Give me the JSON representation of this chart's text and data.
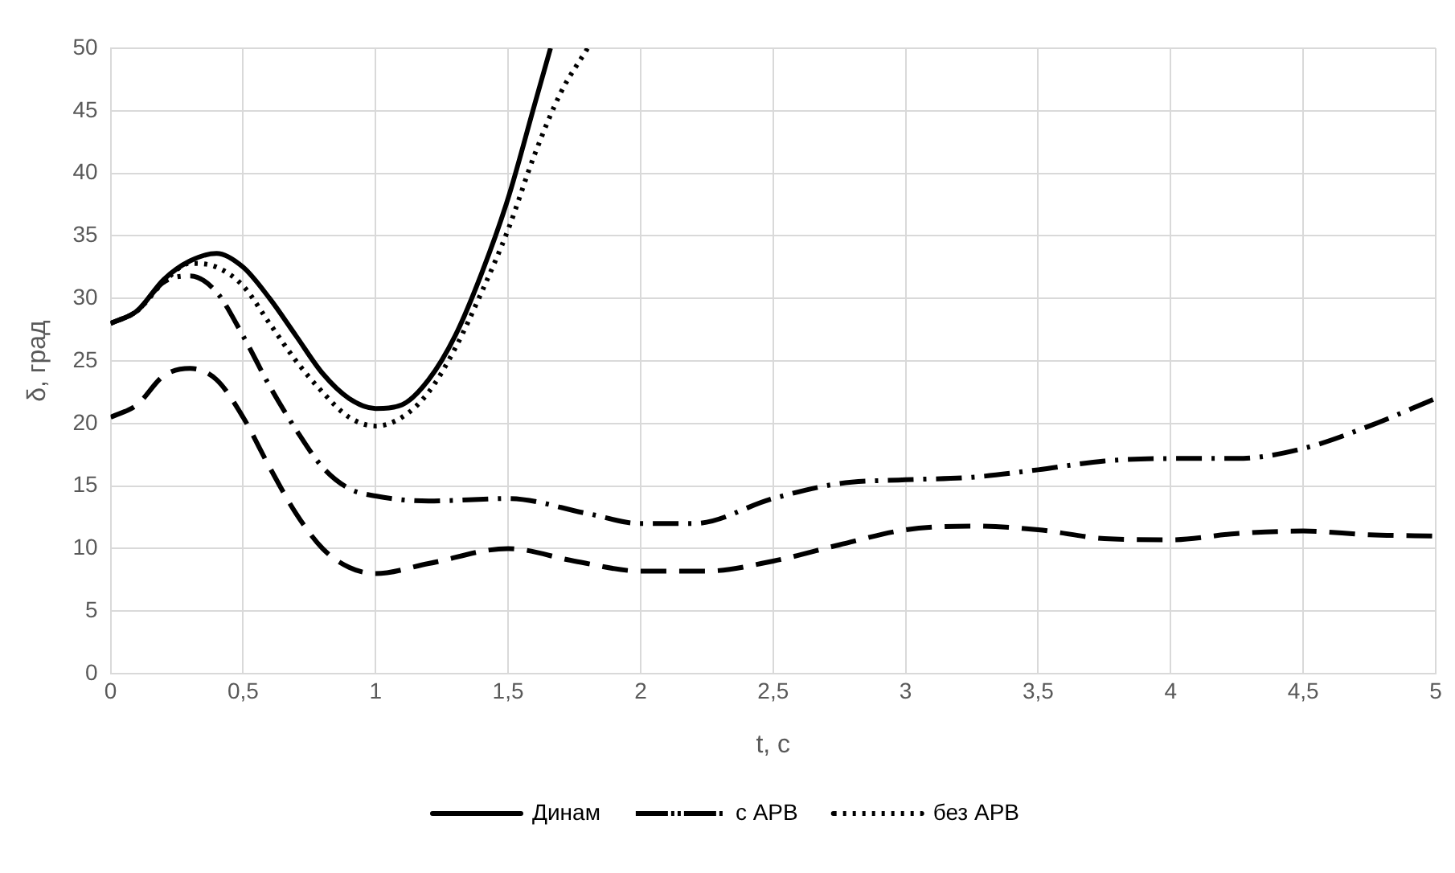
{
  "chart_data": {
    "type": "line",
    "xlabel": "t, с",
    "ylabel": "δ, град",
    "xlim": [
      0,
      5
    ],
    "ylim": [
      0,
      50
    ],
    "xticks": [
      0,
      {
        "value": 0.5,
        "label": "0,5"
      },
      1,
      {
        "value": 1.5,
        "label": "1,5"
      },
      2,
      {
        "value": 2.5,
        "label": "2,5"
      },
      3,
      {
        "value": 3.5,
        "label": "3,5"
      },
      4,
      {
        "value": 4.5,
        "label": "4,5"
      },
      5
    ],
    "yticks": [
      0,
      5,
      10,
      15,
      20,
      25,
      30,
      35,
      40,
      45,
      50
    ],
    "grid": true,
    "legend": "bottom",
    "marker": "none",
    "series": [
      {
        "name": "Динам",
        "color": "#000000",
        "line_style": "solid",
        "x": [
          0,
          0.1,
          0.2,
          0.3,
          0.4,
          0.5,
          0.6,
          0.7,
          0.8,
          0.9,
          1.0,
          1.1,
          1.2,
          1.3,
          1.4,
          1.5,
          1.6,
          1.66
        ],
        "values": [
          28,
          29,
          31.5,
          33,
          33.6,
          32.5,
          30,
          27,
          24,
          22,
          21.2,
          21.5,
          23.5,
          27,
          32,
          38,
          45.5,
          50
        ]
      },
      {
        "color": "#000000",
        "line_style": "dashed",
        "x": [
          0,
          0.1,
          0.2,
          0.3,
          0.4,
          0.5,
          0.6,
          0.7,
          0.8,
          0.9,
          1.0,
          1.2,
          1.5,
          1.75,
          2,
          2.25,
          2.5,
          2.75,
          3,
          3.25,
          3.5,
          3.75,
          4,
          4.25,
          4.5,
          4.75,
          5
        ],
        "values": [
          20.5,
          21.5,
          23.8,
          24.4,
          23.5,
          20.5,
          16.5,
          12.8,
          10,
          8.5,
          8,
          8.8,
          10,
          9,
          8.2,
          8.2,
          9,
          10.3,
          11.5,
          11.8,
          11.5,
          10.8,
          10.7,
          11.2,
          11.4,
          11.1,
          11
        ]
      },
      {
        "name": "с АРВ",
        "color": "#000000",
        "line_style": "dashdot",
        "x": [
          0,
          0.1,
          0.2,
          0.3,
          0.4,
          0.5,
          0.6,
          0.7,
          0.8,
          0.9,
          1.0,
          1.2,
          1.5,
          1.8,
          2.0,
          2.2,
          2.5,
          2.75,
          3,
          3.25,
          3.5,
          3.75,
          4,
          4.25,
          4.5,
          4.75,
          5
        ],
        "values": [
          28,
          29,
          31.3,
          31.8,
          30.5,
          27,
          23,
          19.5,
          16.5,
          14.8,
          14.2,
          13.8,
          14,
          12.8,
          12,
          12,
          14,
          15.2,
          15.5,
          15.7,
          16.3,
          17,
          17.2,
          17.2,
          18,
          19.8,
          22
        ]
      },
      {
        "name": "без АРВ",
        "color": "#000000",
        "line_style": "dotted",
        "x": [
          0,
          0.1,
          0.2,
          0.3,
          0.4,
          0.5,
          0.6,
          0.7,
          0.8,
          0.9,
          1.0,
          1.1,
          1.2,
          1.3,
          1.4,
          1.5,
          1.6,
          1.7,
          1.8
        ],
        "values": [
          28,
          29,
          31.3,
          32.8,
          32.5,
          31,
          28,
          25,
          22.5,
          20.5,
          19.8,
          20.5,
          22.5,
          26,
          30.5,
          35.5,
          41.5,
          46.5,
          50
        ]
      }
    ]
  }
}
